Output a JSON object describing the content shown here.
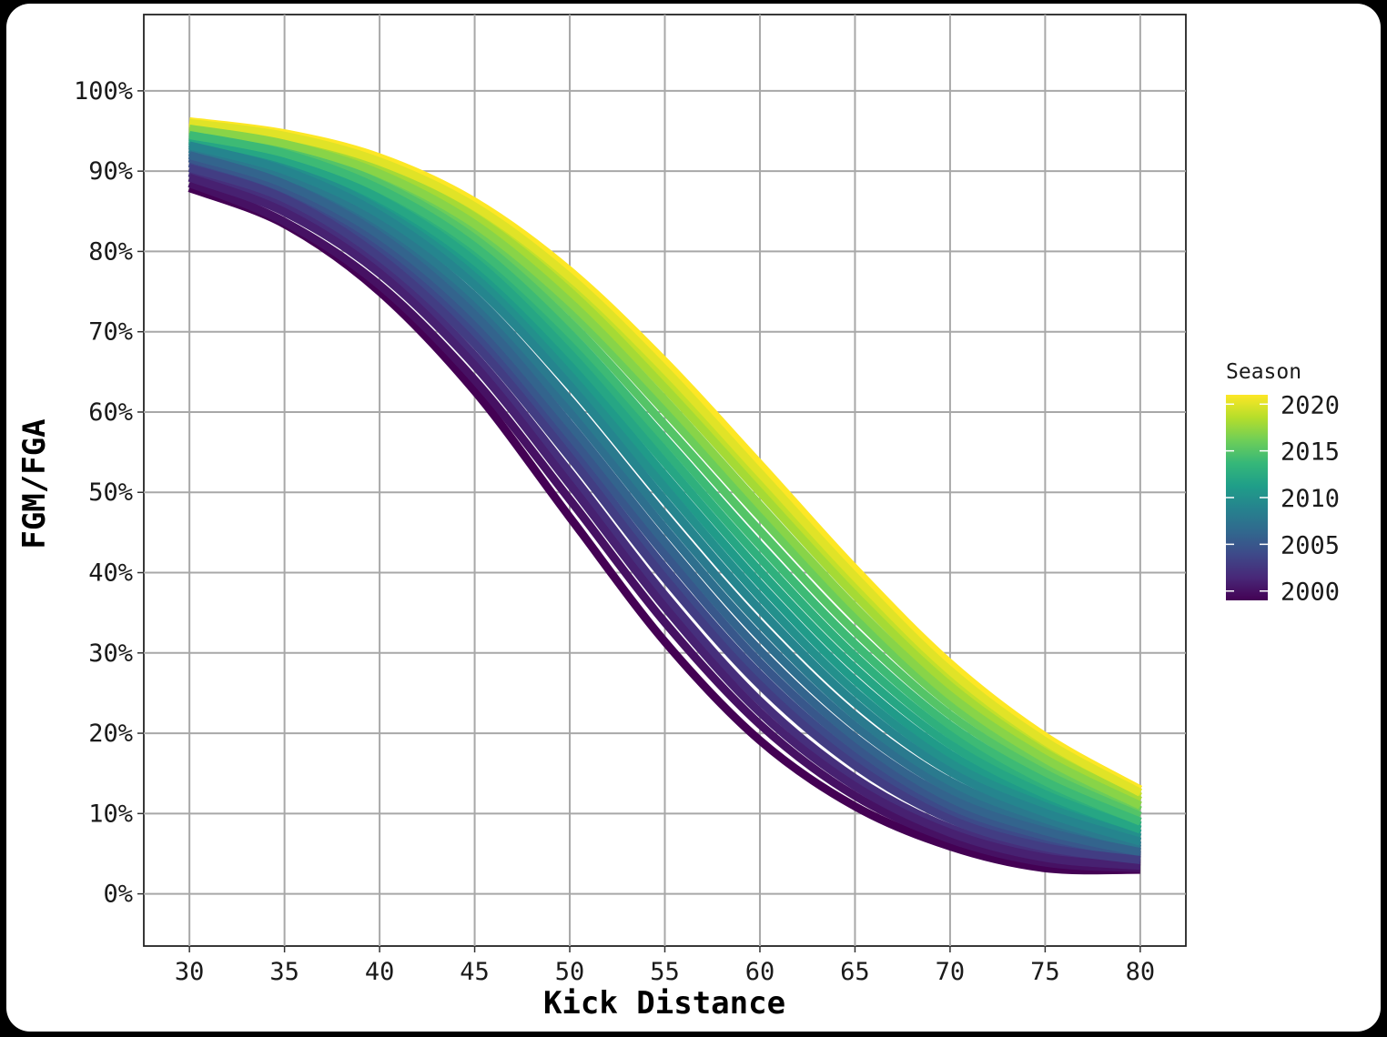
{
  "chart_data": {
    "type": "line",
    "title": "",
    "xlabel": "Kick Distance",
    "ylabel": "FGM/FGA",
    "xlim": [
      27.6,
      82.4
    ],
    "ylim": [
      -0.065,
      1.095
    ],
    "x_ticks": [
      30,
      35,
      40,
      45,
      50,
      55,
      60,
      65,
      70,
      75,
      80
    ],
    "y_ticks": [
      0,
      0.1,
      0.2,
      0.3,
      0.4,
      0.5,
      0.6,
      0.7,
      0.8,
      0.9,
      1.0
    ],
    "y_tick_labels": [
      "0%",
      "10%",
      "20%",
      "30%",
      "40%",
      "50%",
      "60%",
      "70%",
      "80%",
      "90%",
      "100%"
    ],
    "x_tick_labels": [
      "30",
      "35",
      "40",
      "45",
      "50",
      "55",
      "60",
      "65",
      "70",
      "75",
      "80"
    ],
    "grid": true,
    "legend": {
      "title": "Season",
      "placement": "right",
      "type": "colorbar",
      "range": [
        1999,
        2021
      ],
      "breaks": [
        2000,
        2005,
        2010,
        2015,
        2020
      ],
      "break_labels": [
        "2000",
        "2005",
        "2010",
        "2015",
        "2020"
      ]
    },
    "colormap": [
      "#440154",
      "#482878",
      "#3e4989",
      "#31688e",
      "#26828e",
      "#1f9e89",
      "#35b779",
      "#6ece58",
      "#b5de2b",
      "#fde725"
    ],
    "x": [
      30,
      35,
      40,
      45,
      50,
      55,
      60,
      65,
      70,
      75,
      80
    ],
    "series": [
      {
        "season": 1999,
        "values": [
          0.879,
          0.834,
          0.75,
          0.626,
          0.469,
          0.314,
          0.191,
          0.109,
          0.059,
          0.032,
          0.03
        ]
      },
      {
        "season": 2000,
        "values": [
          0.885,
          0.837,
          0.758,
          0.64,
          0.491,
          0.338,
          0.211,
          0.122,
          0.068,
          0.039,
          0.032
        ]
      },
      {
        "season": 2001,
        "values": [
          0.892,
          0.849,
          0.773,
          0.658,
          0.51,
          0.357,
          0.226,
          0.134,
          0.076,
          0.045,
          0.035
        ]
      },
      {
        "season": 2002,
        "values": [
          0.898,
          0.856,
          0.782,
          0.67,
          0.525,
          0.372,
          0.24,
          0.144,
          0.082,
          0.05,
          0.038
        ]
      },
      {
        "season": 2003,
        "values": [
          0.904,
          0.866,
          0.793,
          0.685,
          0.544,
          0.393,
          0.26,
          0.16,
          0.093,
          0.058,
          0.042
        ]
      },
      {
        "season": 2004,
        "values": [
          0.91,
          0.871,
          0.802,
          0.696,
          0.556,
          0.406,
          0.273,
          0.171,
          0.101,
          0.063,
          0.045
        ]
      },
      {
        "season": 2005,
        "values": [
          0.916,
          0.878,
          0.812,
          0.71,
          0.571,
          0.423,
          0.288,
          0.183,
          0.11,
          0.072,
          0.048
        ]
      },
      {
        "season": 2006,
        "values": [
          0.92,
          0.884,
          0.82,
          0.721,
          0.585,
          0.438,
          0.303,
          0.195,
          0.119,
          0.078,
          0.052
        ]
      },
      {
        "season": 2007,
        "values": [
          0.924,
          0.89,
          0.829,
          0.733,
          0.601,
          0.455,
          0.32,
          0.209,
          0.13,
          0.086,
          0.056
        ]
      },
      {
        "season": 2008,
        "values": [
          0.928,
          0.895,
          0.836,
          0.744,
          0.615,
          0.471,
          0.336,
          0.222,
          0.14,
          0.093,
          0.06
        ]
      },
      {
        "season": 2009,
        "values": [
          0.932,
          0.901,
          0.846,
          0.758,
          0.633,
          0.49,
          0.354,
          0.238,
          0.152,
          0.101,
          0.065
        ]
      },
      {
        "season": 2010,
        "values": [
          0.935,
          0.906,
          0.852,
          0.768,
          0.646,
          0.506,
          0.37,
          0.252,
          0.163,
          0.109,
          0.07
        ]
      },
      {
        "season": 2011,
        "values": [
          0.938,
          0.91,
          0.859,
          0.778,
          0.66,
          0.521,
          0.386,
          0.266,
          0.174,
          0.116,
          0.075
        ]
      },
      {
        "season": 2012,
        "values": [
          0.94,
          0.914,
          0.866,
          0.788,
          0.673,
          0.537,
          0.402,
          0.281,
          0.186,
          0.124,
          0.08
        ]
      },
      {
        "season": 2013,
        "values": [
          0.943,
          0.918,
          0.872,
          0.797,
          0.686,
          0.552,
          0.418,
          0.296,
          0.198,
          0.132,
          0.085
        ]
      },
      {
        "season": 2014,
        "values": [
          0.945,
          0.922,
          0.878,
          0.806,
          0.698,
          0.567,
          0.434,
          0.311,
          0.21,
          0.14,
          0.09
        ]
      },
      {
        "season": 2015,
        "values": [
          0.948,
          0.926,
          0.885,
          0.816,
          0.712,
          0.584,
          0.452,
          0.327,
          0.223,
          0.15,
          0.097
        ]
      },
      {
        "season": 2016,
        "values": [
          0.951,
          0.93,
          0.892,
          0.826,
          0.726,
          0.601,
          0.47,
          0.344,
          0.236,
          0.16,
          0.104
        ]
      },
      {
        "season": 2017,
        "values": [
          0.953,
          0.934,
          0.897,
          0.834,
          0.737,
          0.615,
          0.484,
          0.357,
          0.247,
          0.168,
          0.11
        ]
      },
      {
        "season": 2018,
        "values": [
          0.956,
          0.938,
          0.903,
          0.843,
          0.75,
          0.63,
          0.5,
          0.372,
          0.259,
          0.176,
          0.116
        ]
      },
      {
        "season": 2019,
        "values": [
          0.958,
          0.941,
          0.908,
          0.85,
          0.759,
          0.642,
          0.512,
          0.384,
          0.269,
          0.183,
          0.121
        ]
      },
      {
        "season": 2020,
        "values": [
          0.96,
          0.944,
          0.912,
          0.856,
          0.768,
          0.653,
          0.524,
          0.395,
          0.278,
          0.19,
          0.126
        ]
      },
      {
        "season": 2021,
        "values": [
          0.962,
          0.947,
          0.917,
          0.862,
          0.776,
          0.663,
          0.535,
          0.405,
          0.287,
          0.196,
          0.13
        ]
      }
    ]
  }
}
